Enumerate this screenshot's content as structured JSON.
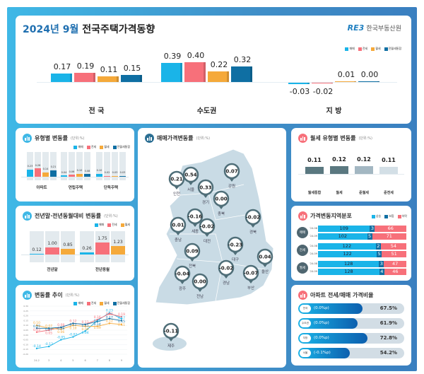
{
  "colors": {
    "sale": "#1ab4e8",
    "jeonse": "#f7707a",
    "wolse": "#f5a93a",
    "combined": "#0f6fa3",
    "ring": "#4f6e78"
  },
  "header": {
    "title_date": "2024년 9월",
    "title_main": "전국주택가격동향",
    "logo_mark": "RE3",
    "logo_text": "한국부동산원",
    "legend": [
      "매매",
      "전세",
      "월세",
      "전월세통합"
    ]
  },
  "top_chart": {
    "type": "bar",
    "categories": [
      "전 국",
      "수도권",
      "지 방"
    ],
    "series": [
      {
        "name": "매매",
        "values": [
          0.17,
          0.39,
          -0.03
        ]
      },
      {
        "name": "전세",
        "values": [
          0.19,
          0.4,
          -0.02
        ]
      },
      {
        "name": "월세",
        "values": [
          0.11,
          0.22,
          0.01
        ]
      },
      {
        "name": "전월세통합",
        "values": [
          0.15,
          0.32,
          0.0
        ]
      }
    ],
    "labels": [
      [
        "0.17",
        "0.19",
        "0.11",
        "0.15"
      ],
      [
        "0.39",
        "0.40",
        "0.22",
        "0.32"
      ],
      [
        "-0.03",
        "-0.02",
        "0.01",
        "0.00"
      ]
    ]
  },
  "type_panel": {
    "title": "유형별 변동률",
    "unit": "(단위:%)",
    "legend": [
      "매매",
      "전세",
      "월세",
      "전월세통합"
    ],
    "categories": [
      "아파트",
      "연립주택",
      "단독주택"
    ],
    "values": [
      [
        0.23,
        0.26,
        0.14,
        0.21
      ],
      [
        0.04,
        0.06,
        0.1,
        0.08
      ],
      [
        0.1,
        0.02,
        0.03,
        0.03
      ]
    ],
    "labels": [
      [
        "0.23",
        "0.26",
        "0.14",
        "0.21"
      ],
      [
        "0.04",
        "0.06",
        "0.10",
        "0.08"
      ],
      [
        "0.10",
        "0.02",
        "0.03",
        "0.03"
      ]
    ]
  },
  "yoy_panel": {
    "title": "전년말·전년동월대비 변동률",
    "unit": "(단위:%)",
    "legend": [
      "매매",
      "전세",
      "월세"
    ],
    "categories": [
      "전년말",
      "전년동월"
    ],
    "values": [
      [
        0.12,
        1.0,
        0.85
      ],
      [
        0.26,
        1.75,
        1.23
      ]
    ],
    "labels": [
      [
        "0.12",
        "1.00",
        "0.85"
      ],
      [
        "0.26",
        "1.75",
        "1.23"
      ]
    ]
  },
  "trend_panel": {
    "title": "변동률 추이",
    "unit": "(단위:%)",
    "legend": [
      "매매",
      "전세",
      "월세",
      "전월세통합"
    ],
    "chart_data": {
      "type": "line",
      "x": [
        "24.2",
        "3",
        "4",
        "5",
        "6",
        "7",
        "8",
        "9"
      ],
      "yticks": [
        "0.30",
        "0.25",
        "0.20",
        "0.15",
        "0.10",
        "0.05",
        "0.00",
        "-0.05",
        "-0.10",
        "-0.15",
        "-0.20"
      ],
      "ylim": [
        -0.2,
        0.3
      ],
      "series": [
        {
          "name": "매매",
          "values": [
            -0.14,
            -0.12,
            -0.05,
            -0.02,
            0.04,
            0.15,
            0.23,
            0.17
          ]
        },
        {
          "name": "전세",
          "values": [
            0.03,
            0.05,
            0.08,
            0.12,
            0.11,
            0.16,
            0.22,
            0.19
          ]
        },
        {
          "name": "월세",
          "values": [
            0.1,
            0.07,
            0.06,
            0.1,
            0.09,
            0.09,
            0.12,
            0.11
          ]
        },
        {
          "name": "전월세통합",
          "values": [
            0.07,
            0.07,
            0.08,
            0.12,
            0.11,
            0.14,
            0.17,
            0.15
          ]
        }
      ]
    }
  },
  "map_panel": {
    "title": "매매가격변동률",
    "unit": "(단위:%)",
    "regions": [
      {
        "name": "인천",
        "value": "0.21"
      },
      {
        "name": "서울",
        "value": "0.54"
      },
      {
        "name": "경기",
        "value": "0.33"
      },
      {
        "name": "강원",
        "value": "0.07"
      },
      {
        "name": "충북",
        "value": "0.00"
      },
      {
        "name": "충남",
        "value": "0.01"
      },
      {
        "name": "세종",
        "value": "-0.16"
      },
      {
        "name": "대전",
        "value": "-0.02"
      },
      {
        "name": "경북",
        "value": "-0.02"
      },
      {
        "name": "대구",
        "value": "-0.23"
      },
      {
        "name": "전북",
        "value": "0.09"
      },
      {
        "name": "울산",
        "value": "0.04"
      },
      {
        "name": "광주",
        "value": "-0.04"
      },
      {
        "name": "전남",
        "value": "0.00"
      },
      {
        "name": "경남",
        "value": "-0.02"
      },
      {
        "name": "부산",
        "value": "-0.07"
      },
      {
        "name": "제주",
        "value": "-0.11"
      }
    ]
  },
  "wolse_panel": {
    "title": "월세 유형별 변동률",
    "unit": "(단위:%)",
    "categories": [
      "월세통합",
      "월세",
      "준월세",
      "준전세"
    ],
    "values": [
      0.11,
      0.12,
      0.12,
      0.11
    ],
    "labels": [
      "0.11",
      "0.12",
      "0.12",
      "0.11"
    ],
    "bar_colors": [
      "#5a7880",
      "#5a7880",
      "#a3b7c2",
      "#d3dfe6"
    ]
  },
  "dist_panel": {
    "title": "가격변동지역분포",
    "legend": [
      "상승",
      "보합",
      "하락"
    ],
    "groups": [
      {
        "name": "매매",
        "rows": [
          {
            "period": "'24.08",
            "up": 109,
            "flat": 3,
            "down": 66
          },
          {
            "period": "'24.09",
            "up": 102,
            "flat": 5,
            "down": 71
          }
        ]
      },
      {
        "name": "전세",
        "rows": [
          {
            "period": "'24.08",
            "up": 122,
            "flat": 2,
            "down": 54
          },
          {
            "period": "'24.09",
            "up": 122,
            "flat": 5,
            "down": 51
          }
        ]
      },
      {
        "name": "월세",
        "rows": [
          {
            "period": "'24.08",
            "up": 128,
            "flat": 3,
            "down": 47
          },
          {
            "period": "'24.09",
            "up": 128,
            "flat": 4,
            "down": 46
          }
        ]
      }
    ]
  },
  "ratio_panel": {
    "title": "아파트 전세/매매 가격비율",
    "rows": [
      {
        "region": "전국",
        "change": "(0.0%p)",
        "value": "67.5%",
        "pct": 67.5
      },
      {
        "region": "수도권",
        "change": "(0.0%p)",
        "value": "61.9%",
        "pct": 61.9
      },
      {
        "region": "지방",
        "change": "(0.0%p)",
        "value": "72.8%",
        "pct": 72.8
      },
      {
        "region": "서울",
        "change": "(-0.1%p)",
        "value": "54.2%",
        "pct": 54.2
      }
    ]
  }
}
